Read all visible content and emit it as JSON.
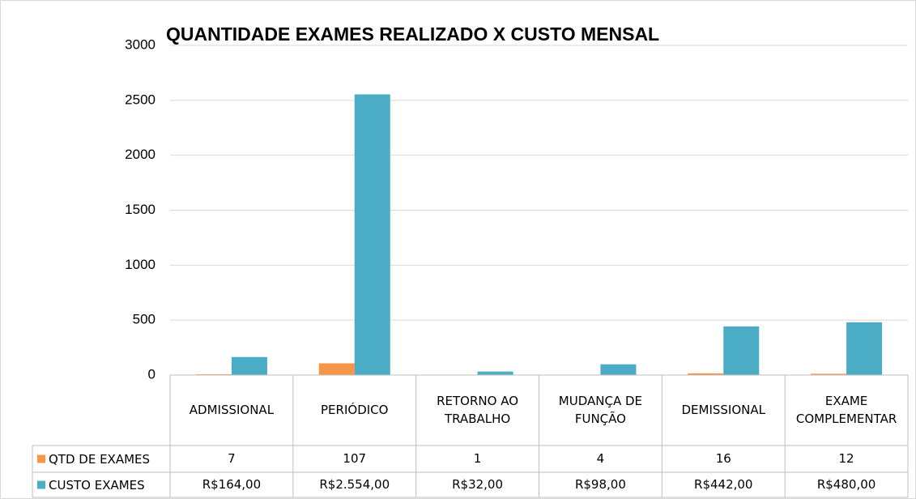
{
  "chart_data": {
    "type": "bar",
    "title": "QUANTIDADE EXAMES REALIZADO X CUSTO MENSAL",
    "categories": [
      "ADMISSIONAL",
      "PERIÓDICO",
      "RETORNO AO TRABALHO",
      "MUDANÇA DE FUNÇÃO",
      "DEMISSIONAL",
      "EXAME COMPLEMENTAR"
    ],
    "series": [
      {
        "name": "QTD DE EXAMES",
        "color": "#f79646",
        "values": [
          7,
          107,
          1,
          4,
          16,
          12
        ]
      },
      {
        "name": "CUSTO EXAMES",
        "color": "#4bacc6",
        "values": [
          164,
          2554,
          32,
          98,
          442,
          480
        ],
        "value_labels": [
          "R$164,00",
          "R$2.554,00",
          "R$32,00",
          "R$98,00",
          "R$442,00",
          "R$480,00"
        ]
      }
    ],
    "ylim": [
      0,
      3000
    ],
    "yticks": [
      0,
      500,
      1000,
      1500,
      2000,
      2500,
      3000
    ],
    "grid": true,
    "legend": "bottom"
  }
}
